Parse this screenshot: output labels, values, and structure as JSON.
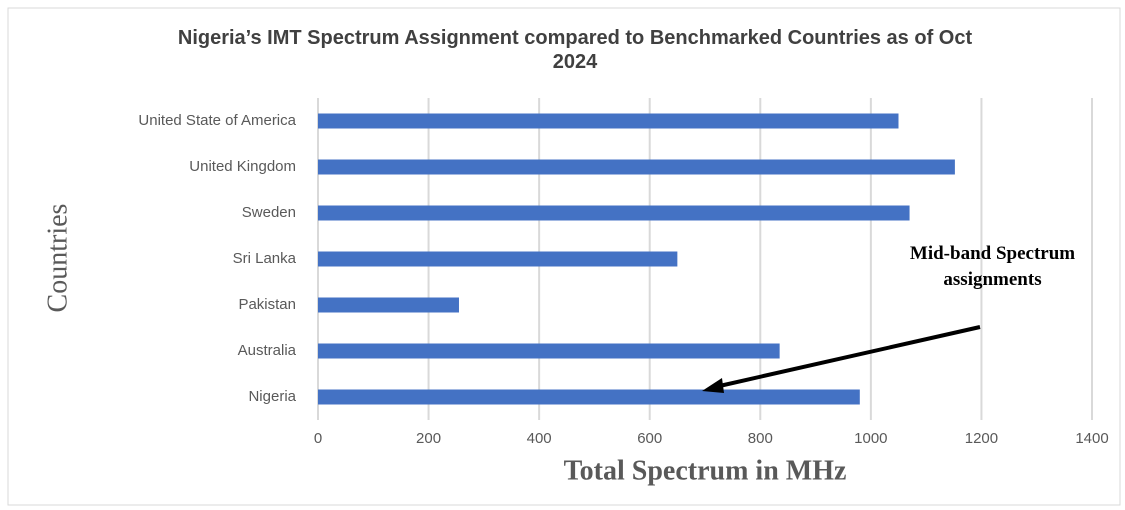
{
  "chart_data": {
    "type": "bar",
    "orientation": "horizontal",
    "title": "Nigeria’s IMT Spectrum Assignment compared to Benchmarked Countries as of Oct 2024",
    "categories": [
      "United State of America",
      "United Kingdom",
      "Sweden",
      "Sri Lanka",
      "Pakistan",
      "Australia",
      "Nigeria"
    ],
    "values": [
      1050,
      1152,
      1070,
      650,
      255,
      835,
      980
    ],
    "color": "#4472c4",
    "xlim": [
      0,
      1400
    ],
    "xticks": [
      0,
      200,
      400,
      600,
      800,
      1000,
      1200,
      1400
    ],
    "grid": true,
    "xlabel": "Total Spectrum in MHz",
    "ylabel": "Countries",
    "annotation": "Mid-band Spectrum assignments"
  }
}
